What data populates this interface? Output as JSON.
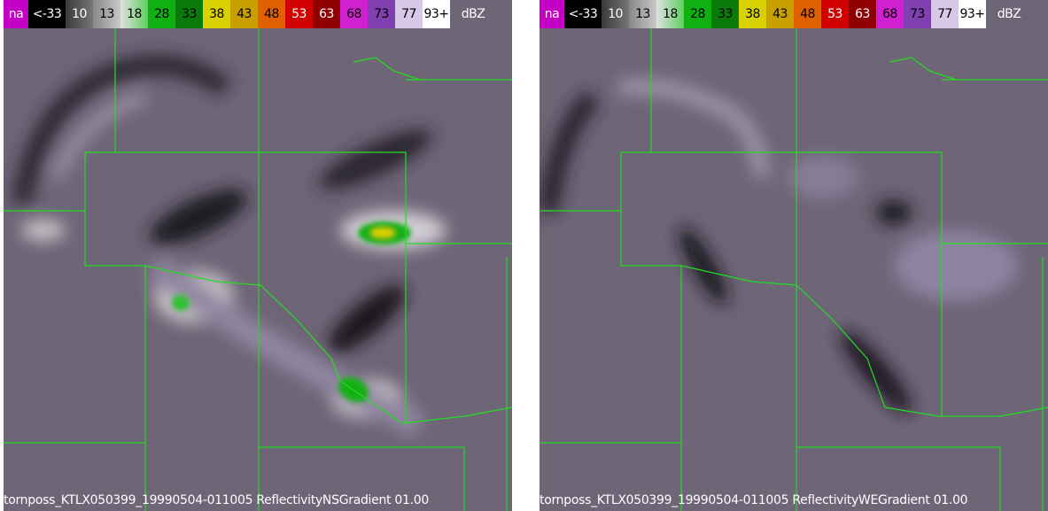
{
  "panels": [
    {
      "legend": [
        "na",
        "<-33",
        "10",
        "13",
        "18",
        "28",
        "33",
        "38",
        "43",
        "48",
        "53",
        "63",
        "68",
        "73",
        "77",
        "93+",
        "dBZ"
      ],
      "caption": "tornposs_KTLX050399_19990504-011005 ReflectivityNSGradient 01.00"
    },
    {
      "legend": [
        "na",
        "<-33",
        "10",
        "13",
        "18",
        "28",
        "33",
        "38",
        "43",
        "48",
        "53",
        "63",
        "68",
        "73",
        "77",
        "93+",
        "dBZ"
      ],
      "caption": "tornposs_KTLX050399_19990504-011005 ReflectivityWEGradient 01.00"
    }
  ]
}
